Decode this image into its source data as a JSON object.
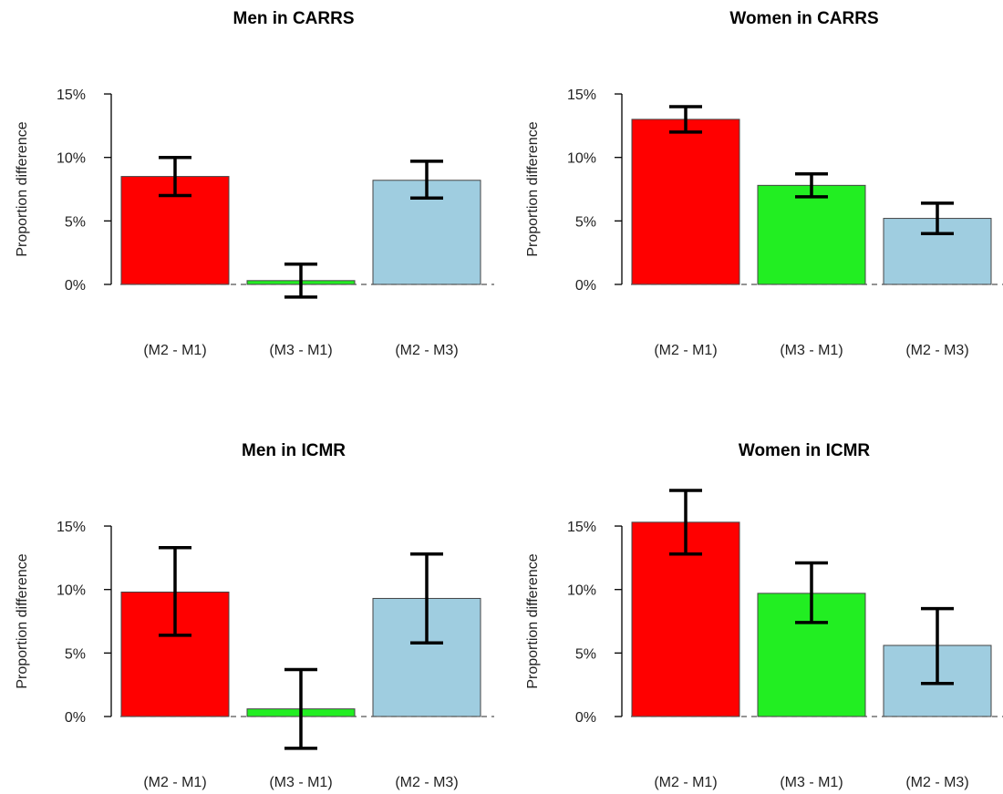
{
  "chart_data": [
    {
      "type": "bar",
      "title": "Men in CARRS",
      "ylabel": "Proportion difference",
      "categories": [
        "(M2 - M1)",
        "(M3 - M1)",
        "(M2 - M3)"
      ],
      "values": [
        8.5,
        0.3,
        8.2
      ],
      "err_low": [
        7.0,
        -1.0,
        6.8
      ],
      "err_high": [
        10.0,
        1.6,
        9.7
      ],
      "colors": [
        "#ff0000",
        "#22ee22",
        "#9fcde0"
      ],
      "yticks": [
        "0%",
        "5%",
        "10%",
        "15%"
      ],
      "ylim": [
        0,
        15
      ]
    },
    {
      "type": "bar",
      "title": "Women in CARRS",
      "ylabel": "Proportion difference",
      "categories": [
        "(M2 - M1)",
        "(M3 - M1)",
        "(M2 - M3)"
      ],
      "values": [
        13.0,
        7.8,
        5.2
      ],
      "err_low": [
        12.0,
        6.9,
        4.0
      ],
      "err_high": [
        14.0,
        8.7,
        6.4
      ],
      "colors": [
        "#ff0000",
        "#22ee22",
        "#9fcde0"
      ],
      "yticks": [
        "0%",
        "5%",
        "10%",
        "15%"
      ],
      "ylim": [
        0,
        15
      ]
    },
    {
      "type": "bar",
      "title": "Men in ICMR",
      "ylabel": "Proportion difference",
      "categories": [
        "(M2 - M1)",
        "(M3 - M1)",
        "(M2 - M3)"
      ],
      "values": [
        9.8,
        0.6,
        9.3
      ],
      "err_low": [
        6.4,
        -2.5,
        5.8
      ],
      "err_high": [
        13.3,
        3.7,
        12.8
      ],
      "colors": [
        "#ff0000",
        "#22ee22",
        "#9fcde0"
      ],
      "yticks": [
        "0%",
        "5%",
        "10%",
        "15%"
      ],
      "ylim": [
        0,
        15
      ]
    },
    {
      "type": "bar",
      "title": "Women in ICMR",
      "ylabel": "Proportion difference",
      "categories": [
        "(M2 - M1)",
        "(M3 - M1)",
        "(M2 - M3)"
      ],
      "values": [
        15.3,
        9.7,
        5.6
      ],
      "err_low": [
        12.8,
        7.4,
        2.6
      ],
      "err_high": [
        17.8,
        12.1,
        8.5
      ],
      "colors": [
        "#ff0000",
        "#22ee22",
        "#9fcde0"
      ],
      "yticks": [
        "0%",
        "5%",
        "10%",
        "15%"
      ],
      "ylim": [
        0,
        15
      ]
    }
  ]
}
